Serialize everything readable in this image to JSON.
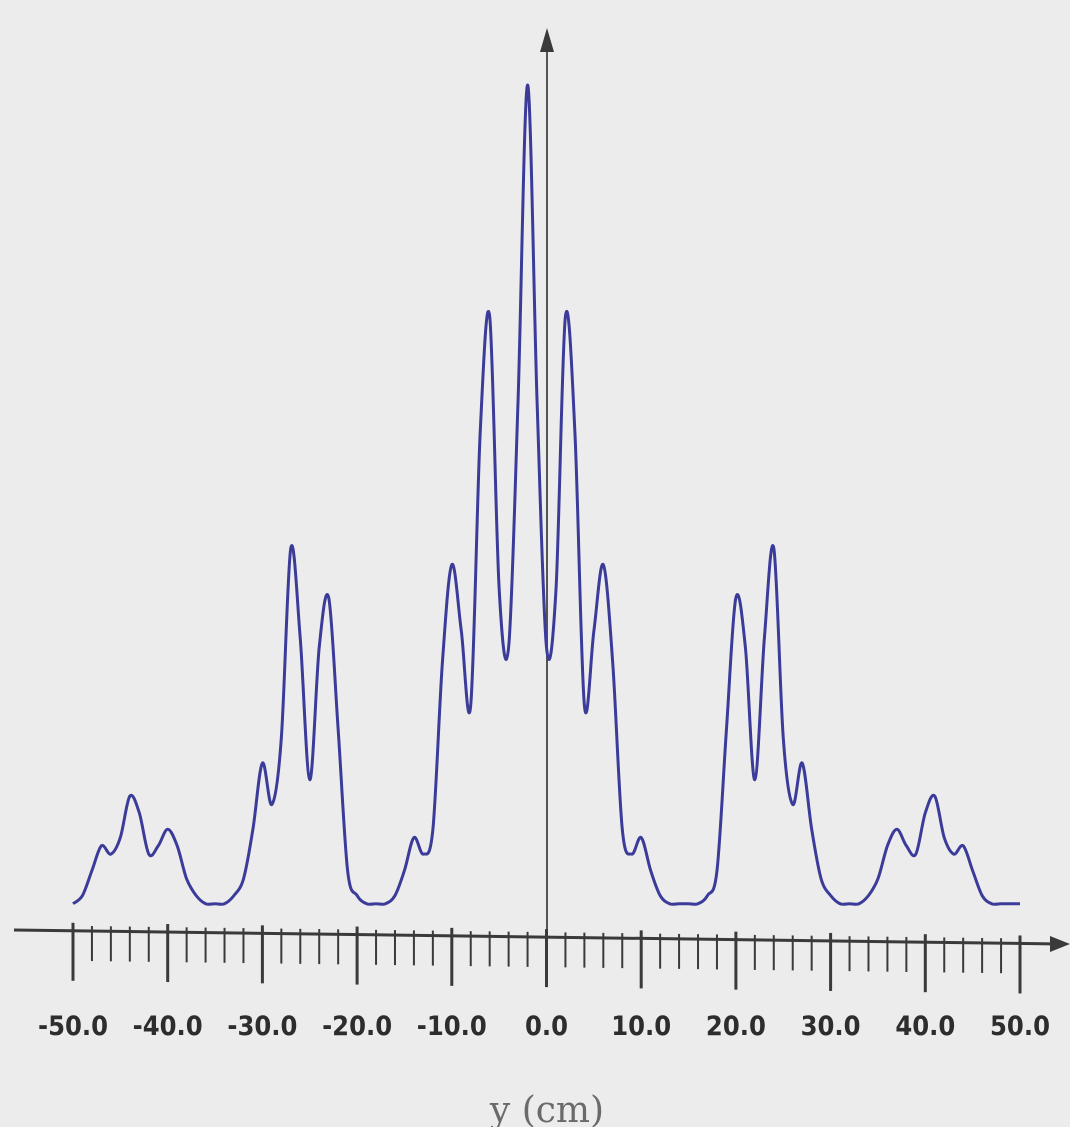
{
  "chart_data": {
    "type": "line",
    "xlabel": "y (cm)",
    "ylabel": "",
    "title": "",
    "xlim": [
      -50,
      50
    ],
    "x_ticks_major": [
      -50,
      -40,
      -30,
      -20,
      -10,
      0,
      10,
      20,
      30,
      40,
      50
    ],
    "x_tick_labels": [
      "-50.0",
      "-40.0",
      "-30.0",
      "-20.0",
      "-10.0",
      "0.0",
      "10.0",
      "20.0",
      "30.0",
      "40.0",
      "50.0"
    ],
    "x_minor_step": 2,
    "y_axis_ticks": false,
    "grid": false,
    "series": [
      {
        "color": "#3b3b9a",
        "x": [
          -50,
          -49,
          -48,
          -47,
          -46,
          -45,
          -44,
          -43,
          -42,
          -41,
          -40,
          -39,
          -38,
          -37,
          -36,
          -35,
          -34,
          -33,
          -32,
          -31,
          -30,
          -29,
          -28,
          -27,
          -26,
          -25,
          -24,
          -23,
          -22,
          -21,
          -20,
          -19,
          -18,
          -17,
          -16,
          -15,
          -14,
          -13,
          -12,
          -11,
          -10,
          -9,
          -8,
          -7,
          -6,
          -5,
          -4,
          -3,
          -2,
          -1,
          0,
          1,
          2,
          3,
          4,
          5,
          6,
          7,
          8,
          9,
          10,
          11,
          12,
          13,
          14,
          15,
          16,
          17,
          18,
          19,
          20,
          21,
          22,
          23,
          24,
          25,
          26,
          27,
          28,
          29,
          30,
          31,
          32,
          33,
          34,
          35,
          36,
          37,
          38,
          39,
          40,
          41,
          42,
          43,
          44,
          45,
          46,
          47,
          48,
          49,
          50
        ],
        "y": [
          0.01,
          0.02,
          0.05,
          0.08,
          0.07,
          0.09,
          0.14,
          0.12,
          0.07,
          0.08,
          0.1,
          0.08,
          0.04,
          0.02,
          0.01,
          0.01,
          0.01,
          0.02,
          0.04,
          0.1,
          0.18,
          0.13,
          0.21,
          0.44,
          0.33,
          0.16,
          0.32,
          0.38,
          0.22,
          0.05,
          0.02,
          0.01,
          0.01,
          0.01,
          0.02,
          0.05,
          0.09,
          0.07,
          0.1,
          0.3,
          0.42,
          0.34,
          0.25,
          0.58,
          0.72,
          0.39,
          0.32,
          0.62,
          1.0,
          0.62,
          0.32,
          0.39,
          0.72,
          0.58,
          0.25,
          0.34,
          0.42,
          0.3,
          0.1,
          0.07,
          0.09,
          0.05,
          0.02,
          0.01,
          0.01,
          0.01,
          0.01,
          0.02,
          0.05,
          0.22,
          0.38,
          0.32,
          0.16,
          0.33,
          0.44,
          0.21,
          0.13,
          0.18,
          0.1,
          0.04,
          0.02,
          0.01,
          0.01,
          0.01,
          0.02,
          0.04,
          0.08,
          0.1,
          0.08,
          0.07,
          0.12,
          0.14,
          0.09,
          0.07,
          0.08,
          0.05,
          0.02,
          0.01,
          0.01,
          0.01,
          0.01
        ]
      }
    ]
  }
}
